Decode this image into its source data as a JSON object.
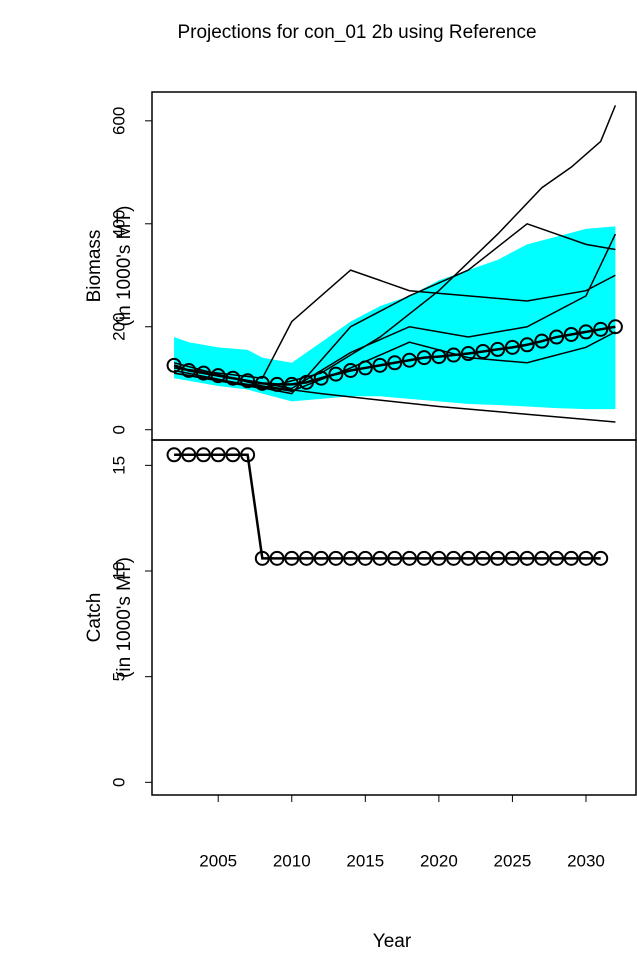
{
  "chart_data": [
    {
      "type": "line",
      "title": "Projections for con_01 2b using Reference",
      "ylabel": [
        "Biomass",
        "(in 1000's MT)"
      ],
      "xlim": [
        2000.5,
        2033.4
      ],
      "ylim": [
        -20,
        656
      ],
      "yticks": [
        0,
        200,
        400,
        600
      ],
      "band": {
        "color": "#00ffff",
        "x": [
          2002,
          2003,
          2005,
          2007,
          2008,
          2010,
          2012,
          2014,
          2016,
          2018,
          2020,
          2022,
          2024,
          2026,
          2028,
          2030,
          2032
        ],
        "upper": [
          180,
          170,
          160,
          155,
          140,
          130,
          170,
          210,
          240,
          260,
          290,
          310,
          330,
          360,
          375,
          390,
          395
        ],
        "lower": [
          100,
          95,
          85,
          78,
          70,
          55,
          60,
          65,
          65,
          60,
          55,
          50,
          48,
          45,
          42,
          40,
          40
        ]
      },
      "series": [
        {
          "color": "#000000",
          "marker": "circle",
          "x": [
            2002,
            2003,
            2004,
            2005,
            2006,
            2007,
            2008,
            2009,
            2010,
            2011,
            2012,
            2013,
            2014,
            2015,
            2016,
            2017,
            2018,
            2019,
            2020,
            2021,
            2022,
            2023,
            2024,
            2025,
            2026,
            2027,
            2028,
            2029,
            2030,
            2031,
            2032
          ],
          "values": [
            125,
            115,
            110,
            105,
            100,
            95,
            90,
            88,
            88,
            92,
            100,
            108,
            115,
            120,
            125,
            130,
            135,
            140,
            142,
            145,
            148,
            152,
            156,
            160,
            165,
            172,
            180,
            185,
            190,
            195,
            200
          ]
        },
        {
          "color": "#000000",
          "x": [
            2002,
            2008,
            2012,
            2020,
            2032
          ],
          "values": [
            130,
            85,
            70,
            45,
            15
          ]
        },
        {
          "color": "#000000",
          "x": [
            2002,
            2008,
            2010,
            2014,
            2018,
            2022,
            2026,
            2030,
            2032
          ],
          "values": [
            120,
            100,
            210,
            310,
            270,
            260,
            250,
            270,
            300
          ]
        },
        {
          "color": "#000000",
          "x": [
            2002,
            2008,
            2012,
            2016,
            2020,
            2024,
            2027,
            2029,
            2031,
            2032
          ],
          "values": [
            110,
            80,
            110,
            180,
            270,
            380,
            470,
            510,
            560,
            630
          ]
        },
        {
          "color": "#000000",
          "x": [
            2002,
            2010,
            2014,
            2018,
            2022,
            2026,
            2030,
            2032
          ],
          "values": [
            115,
            70,
            200,
            260,
            310,
            400,
            360,
            350
          ]
        },
        {
          "color": "#000000",
          "x": [
            2002,
            2010,
            2014,
            2018,
            2022,
            2026,
            2030,
            2032
          ],
          "values": [
            120,
            80,
            150,
            200,
            180,
            200,
            260,
            380
          ]
        },
        {
          "color": "#000000",
          "x": [
            2002,
            2010,
            2014,
            2018,
            2022,
            2026,
            2030,
            2032
          ],
          "values": [
            110,
            75,
            120,
            170,
            140,
            130,
            160,
            190
          ]
        }
      ]
    },
    {
      "type": "line",
      "ylabel": [
        "Catch",
        "(in 1000's MT)"
      ],
      "xlabel": "Year",
      "xlim": [
        2000.5,
        2033.4
      ],
      "xticks": [
        2005,
        2010,
        2015,
        2020,
        2025,
        2030
      ],
      "ylim": [
        -0.6,
        16.2
      ],
      "yticks": [
        0,
        5,
        10,
        15
      ],
      "series": [
        {
          "color": "#000000",
          "marker": "circle",
          "x": [
            2002,
            2003,
            2004,
            2005,
            2006,
            2007,
            2008,
            2009,
            2010,
            2011,
            2012,
            2013,
            2014,
            2015,
            2016,
            2017,
            2018,
            2019,
            2020,
            2021,
            2022,
            2023,
            2024,
            2025,
            2026,
            2027,
            2028,
            2029,
            2030,
            2031
          ],
          "values": [
            15.5,
            15.5,
            15.5,
            15.5,
            15.5,
            15.5,
            10.6,
            10.6,
            10.6,
            10.6,
            10.6,
            10.6,
            10.6,
            10.6,
            10.6,
            10.6,
            10.6,
            10.6,
            10.6,
            10.6,
            10.6,
            10.6,
            10.6,
            10.6,
            10.6,
            10.6,
            10.6,
            10.6,
            10.6,
            10.6
          ]
        }
      ]
    }
  ]
}
